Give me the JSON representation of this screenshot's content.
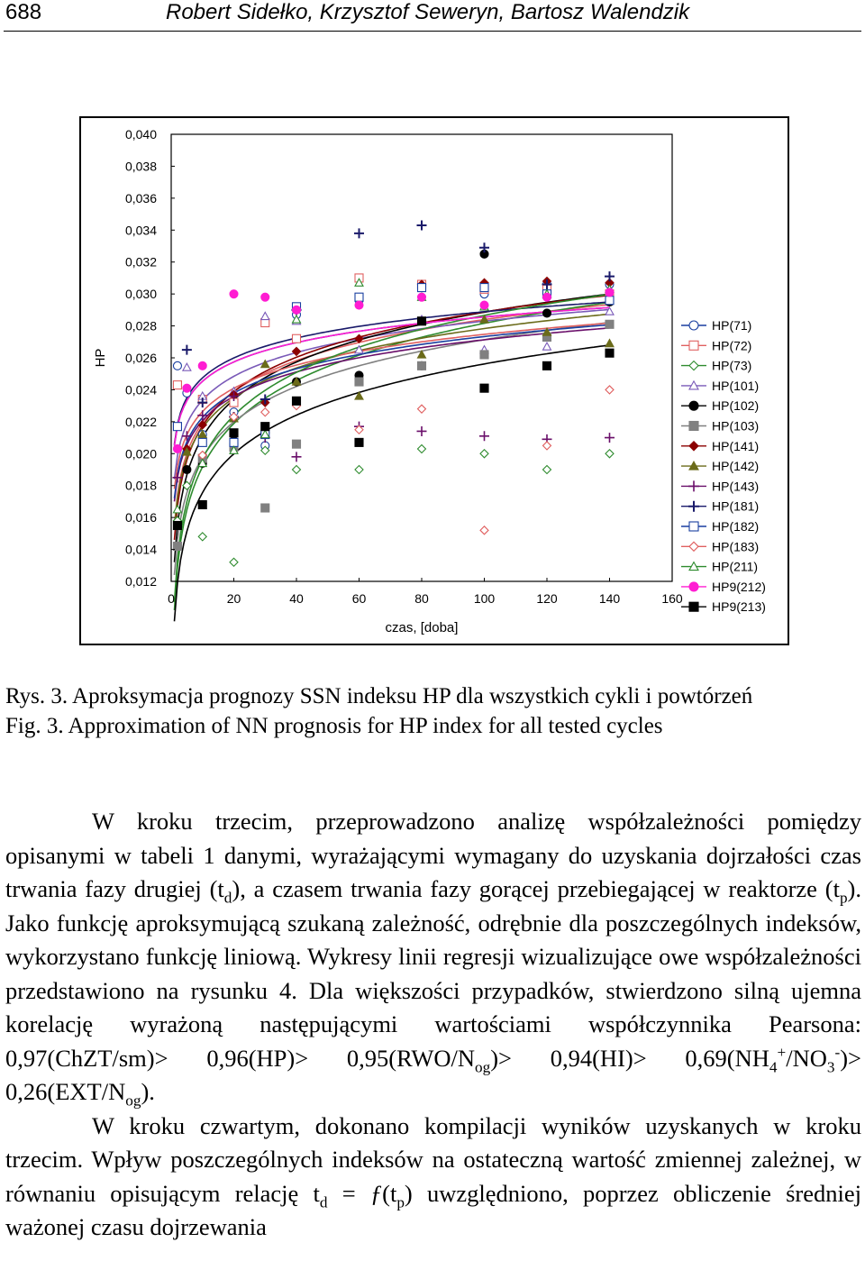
{
  "header": {
    "page_number": "688",
    "authors": "Robert Sidełko, Krzysztof Seweryn, Bartosz Walendzik"
  },
  "figure": {
    "caption_pl": "Rys. 3. Aproksymacja prognozy SSN indeksu HP dla wszystkich cykli i powtórzeń",
    "caption_en": "Fig. 3. Approximation of NN prognosis for HP index for all tested cycles"
  },
  "chart_data": {
    "type": "scatter",
    "title": "",
    "xlabel": "czas, [doba]",
    "ylabel": "HP",
    "xlim": [
      0,
      160
    ],
    "ylim": [
      0.012,
      0.04
    ],
    "x_ticks": [
      "0",
      "20",
      "40",
      "60",
      "80",
      "100",
      "120",
      "140",
      "160"
    ],
    "y_ticks": [
      "0,012",
      "0,014",
      "0,016",
      "0,018",
      "0,020",
      "0,022",
      "0,024",
      "0,026",
      "0,028",
      "0,030",
      "0,032",
      "0,034",
      "0,036",
      "0,038",
      "0,040"
    ],
    "grid": false,
    "legend_position": "right",
    "series": [
      {
        "name": "HP(71)",
        "color": "#1a3fa0",
        "marker": "circle-open",
        "points": [
          [
            2,
            0.0255
          ],
          [
            5,
            0.0238
          ],
          [
            10,
            0.0212
          ],
          [
            20,
            0.0226
          ],
          [
            30,
            0.0205
          ],
          [
            40,
            0.0287
          ],
          [
            60,
            0.0296
          ],
          [
            80,
            0.0304
          ],
          [
            100,
            0.03
          ],
          [
            120,
            0.0306
          ],
          [
            140,
            0.0306
          ]
        ],
        "fit": [
          0.0205,
          0.00175
        ]
      },
      {
        "name": "HP(72)",
        "color": "#e06060",
        "marker": "square-open",
        "points": [
          [
            2,
            0.0243
          ],
          [
            10,
            0.0234
          ],
          [
            20,
            0.0232
          ],
          [
            30,
            0.0282
          ],
          [
            40,
            0.0272
          ],
          [
            60,
            0.031
          ],
          [
            80,
            0.0306
          ],
          [
            100,
            0.0303
          ],
          [
            120,
            0.0303
          ],
          [
            140,
            0.03
          ]
        ],
        "fit": [
          0.0155,
          0.0028
        ]
      },
      {
        "name": "HP(73)",
        "color": "#2e8b2e",
        "marker": "diamond-open",
        "points": [
          [
            2,
            0.0158
          ],
          [
            5,
            0.018
          ],
          [
            10,
            0.0148
          ],
          [
            20,
            0.0132
          ],
          [
            30,
            0.0202
          ],
          [
            40,
            0.019
          ],
          [
            60,
            0.019
          ],
          [
            80,
            0.0203
          ],
          [
            100,
            0.02
          ],
          [
            120,
            0.019
          ],
          [
            140,
            0.02
          ]
        ],
        "fit": [
          0.0102,
          0.0039
        ]
      },
      {
        "name": "HP(101)",
        "color": "#7a5ab8",
        "marker": "triangle-open",
        "points": [
          [
            5,
            0.0254
          ],
          [
            10,
            0.0236
          ],
          [
            20,
            0.0239
          ],
          [
            30,
            0.0286
          ],
          [
            40,
            0.0283
          ],
          [
            60,
            0.0265
          ],
          [
            80,
            0.0284
          ],
          [
            100,
            0.0265
          ],
          [
            120,
            0.0267
          ],
          [
            140,
            0.0289
          ]
        ],
        "fit": [
          0.0184,
          0.00215
        ]
      },
      {
        "name": "HP(102)",
        "color": "#000000",
        "marker": "circle",
        "points": [
          [
            5,
            0.019
          ],
          [
            10,
            0.0194
          ],
          [
            20,
            0.0212
          ],
          [
            30,
            0.0213
          ],
          [
            40,
            0.0245
          ],
          [
            60,
            0.0249
          ],
          [
            80,
            0.0255
          ],
          [
            100,
            0.0325
          ],
          [
            120,
            0.0288
          ],
          [
            140,
            0.0295
          ]
        ],
        "fit": [
          0.0132,
          0.0034
        ]
      },
      {
        "name": "HP(103)",
        "color": "#808080",
        "marker": "square",
        "points": [
          [
            2,
            0.0142
          ],
          [
            10,
            0.0197
          ],
          [
            20,
            0.0204
          ],
          [
            30,
            0.0166
          ],
          [
            40,
            0.0206
          ],
          [
            60,
            0.0245
          ],
          [
            80,
            0.0255
          ],
          [
            100,
            0.0262
          ],
          [
            120,
            0.0273
          ],
          [
            140,
            0.0281
          ]
        ],
        "fit": [
          0.0124,
          0.0032
        ]
      },
      {
        "name": "HP(141)",
        "color": "#8b0000",
        "marker": "diamond",
        "points": [
          [
            5,
            0.0203
          ],
          [
            10,
            0.0218
          ],
          [
            20,
            0.0237
          ],
          [
            30,
            0.0232
          ],
          [
            40,
            0.0264
          ],
          [
            60,
            0.0272
          ],
          [
            80,
            0.0306
          ],
          [
            100,
            0.0307
          ],
          [
            120,
            0.0308
          ],
          [
            140,
            0.0307
          ]
        ],
        "fit": [
          0.0146,
          0.0031
        ]
      },
      {
        "name": "HP(142)",
        "color": "#6b6b1a",
        "marker": "triangle",
        "points": [
          [
            5,
            0.0201
          ],
          [
            10,
            0.0212
          ],
          [
            20,
            0.0222
          ],
          [
            30,
            0.0256
          ],
          [
            40,
            0.0245
          ],
          [
            60,
            0.0236
          ],
          [
            80,
            0.0262
          ],
          [
            100,
            0.0284
          ],
          [
            120,
            0.0276
          ],
          [
            140,
            0.0269
          ]
        ],
        "fit": [
          0.0154,
          0.0027
        ]
      },
      {
        "name": "HP(143)",
        "color": "#6a0f6a",
        "marker": "plus",
        "points": [
          [
            2,
            0.0185
          ],
          [
            5,
            0.0211
          ],
          [
            10,
            0.0224
          ],
          [
            20,
            0.0236
          ],
          [
            30,
            0.021
          ],
          [
            40,
            0.0198
          ],
          [
            60,
            0.0217
          ],
          [
            80,
            0.0214
          ],
          [
            100,
            0.0211
          ],
          [
            120,
            0.0209
          ],
          [
            140,
            0.021
          ]
        ],
        "fit": [
          0.017,
          0.0022
        ]
      },
      {
        "name": "HP(181)",
        "color": "#1a1a6a",
        "marker": "plus-bold",
        "points": [
          [
            5,
            0.0265
          ],
          [
            10,
            0.0232
          ],
          [
            20,
            0.0223
          ],
          [
            30,
            0.0234
          ],
          [
            40,
            0.029
          ],
          [
            60,
            0.0338
          ],
          [
            80,
            0.0343
          ],
          [
            100,
            0.0329
          ],
          [
            120,
            0.0306
          ],
          [
            140,
            0.0311
          ]
        ],
        "fit": [
          0.0206,
          0.0018
        ]
      },
      {
        "name": "HP(182)",
        "color": "#1a3fa0",
        "marker": "square-open",
        "points": [
          [
            2,
            0.0217
          ],
          [
            10,
            0.0207
          ],
          [
            20,
            0.0207
          ],
          [
            30,
            0.0212
          ],
          [
            40,
            0.0292
          ],
          [
            60,
            0.0298
          ],
          [
            80,
            0.0304
          ],
          [
            100,
            0.0304
          ],
          [
            120,
            0.03
          ],
          [
            140,
            0.0296
          ]
        ],
        "fit": [
          0.0172,
          0.0022
        ]
      },
      {
        "name": "HP(183)",
        "color": "#e06060",
        "marker": "diamond-open",
        "points": [
          [
            10,
            0.0199
          ],
          [
            20,
            0.0223
          ],
          [
            30,
            0.0226
          ],
          [
            40,
            0.023
          ],
          [
            60,
            0.0215
          ],
          [
            80,
            0.0228
          ],
          [
            100,
            0.0152
          ],
          [
            120,
            0.0205
          ],
          [
            140,
            0.024
          ]
        ],
        "fit": [
          0.0178,
          0.0021
        ]
      },
      {
        "name": "HP(211)",
        "color": "#2e8b2e",
        "marker": "triangle-open",
        "points": [
          [
            2,
            0.0165
          ],
          [
            10,
            0.0194
          ],
          [
            20,
            0.0202
          ],
          [
            30,
            0.0212
          ],
          [
            40,
            0.0284
          ],
          [
            60,
            0.0307
          ],
          [
            80,
            0.0298
          ],
          [
            100,
            0.0292
          ],
          [
            120,
            0.03
          ],
          [
            140,
            0.0303
          ]
        ],
        "fit": [
          0.0107,
          0.0039
        ]
      },
      {
        "name": "HP9(212)",
        "color": "#ff1dd2",
        "marker": "circle",
        "points": [
          [
            2,
            0.0203
          ],
          [
            5,
            0.0241
          ],
          [
            10,
            0.0255
          ],
          [
            20,
            0.03
          ],
          [
            30,
            0.0298
          ],
          [
            40,
            0.029
          ],
          [
            60,
            0.0293
          ],
          [
            80,
            0.0298
          ],
          [
            100,
            0.0293
          ],
          [
            120,
            0.0298
          ],
          [
            140,
            0.0301
          ]
        ],
        "fit": [
          0.0205,
          0.00175
        ]
      },
      {
        "name": "HP9(213)",
        "color": "#000000",
        "marker": "square",
        "points": [
          [
            2,
            0.0155
          ],
          [
            10,
            0.0168
          ],
          [
            20,
            0.0213
          ],
          [
            30,
            0.0217
          ],
          [
            40,
            0.0233
          ],
          [
            60,
            0.0207
          ],
          [
            80,
            0.0283
          ],
          [
            100,
            0.0241
          ],
          [
            120,
            0.0255
          ],
          [
            140,
            0.0263
          ]
        ],
        "fit": [
          0.0095,
          0.0035
        ]
      }
    ],
    "fit_model": "y = a + b*ln(x)"
  },
  "text": {
    "p1_a": "W kroku trzecim, przeprowadzono analizę współzależności pomiędzy opisanymi w tabeli 1 danymi, wyrażającymi wymagany do uzyskania dojrzałości czas trwania fazy drugiej (t",
    "p1_sub_d": "d",
    "p1_b": "), a czasem trwania fazy gorącej przebiegającej w reaktorze (t",
    "p1_sub_p": "p",
    "p1_c": "). Jako funkcję aproksymującą szukaną zależność, odrębnie dla poszczególnych indeksów, wykorzystano funkcję liniową. Wykresy linii regresji wizualizujące owe współzależności przedstawiono na rysunku 4. Dla większości przypadków, stwierdzono silną ujemna korelację wyrażoną następującymi wartościami współczynnika Pearsona: 0,97(ChZT/sm)> 0,96(HP)> 0,95(RWO/N",
    "p1_sub_og1": "og",
    "p1_d": ")> 0,94(HI)> 0,69(NH",
    "p1_sub_4": "4",
    "p1_sup_plus": "+",
    "p1_e": "/NO",
    "p1_sub_3": "3",
    "p1_sup_minus": "-",
    "p1_f": ")> 0,26(EXT/N",
    "p1_sub_og2": "og",
    "p1_g": ").",
    "p2_a": "W kroku czwartym, dokonano kompilacji wyników uzyskanych w kroku trzecim. Wpływ poszczególnych indeksów na ostateczną wartość zmiennej zależnej, w równaniu opisującym relację t",
    "p2_sub_d": "d",
    "p2_eq": " = ",
    "p2_f": "ƒ",
    "p2_b": "(t",
    "p2_sub_p": "p",
    "p2_c": ") uwzględniono, poprzez obliczenie średniej ważonej czasu dojrzewania"
  }
}
